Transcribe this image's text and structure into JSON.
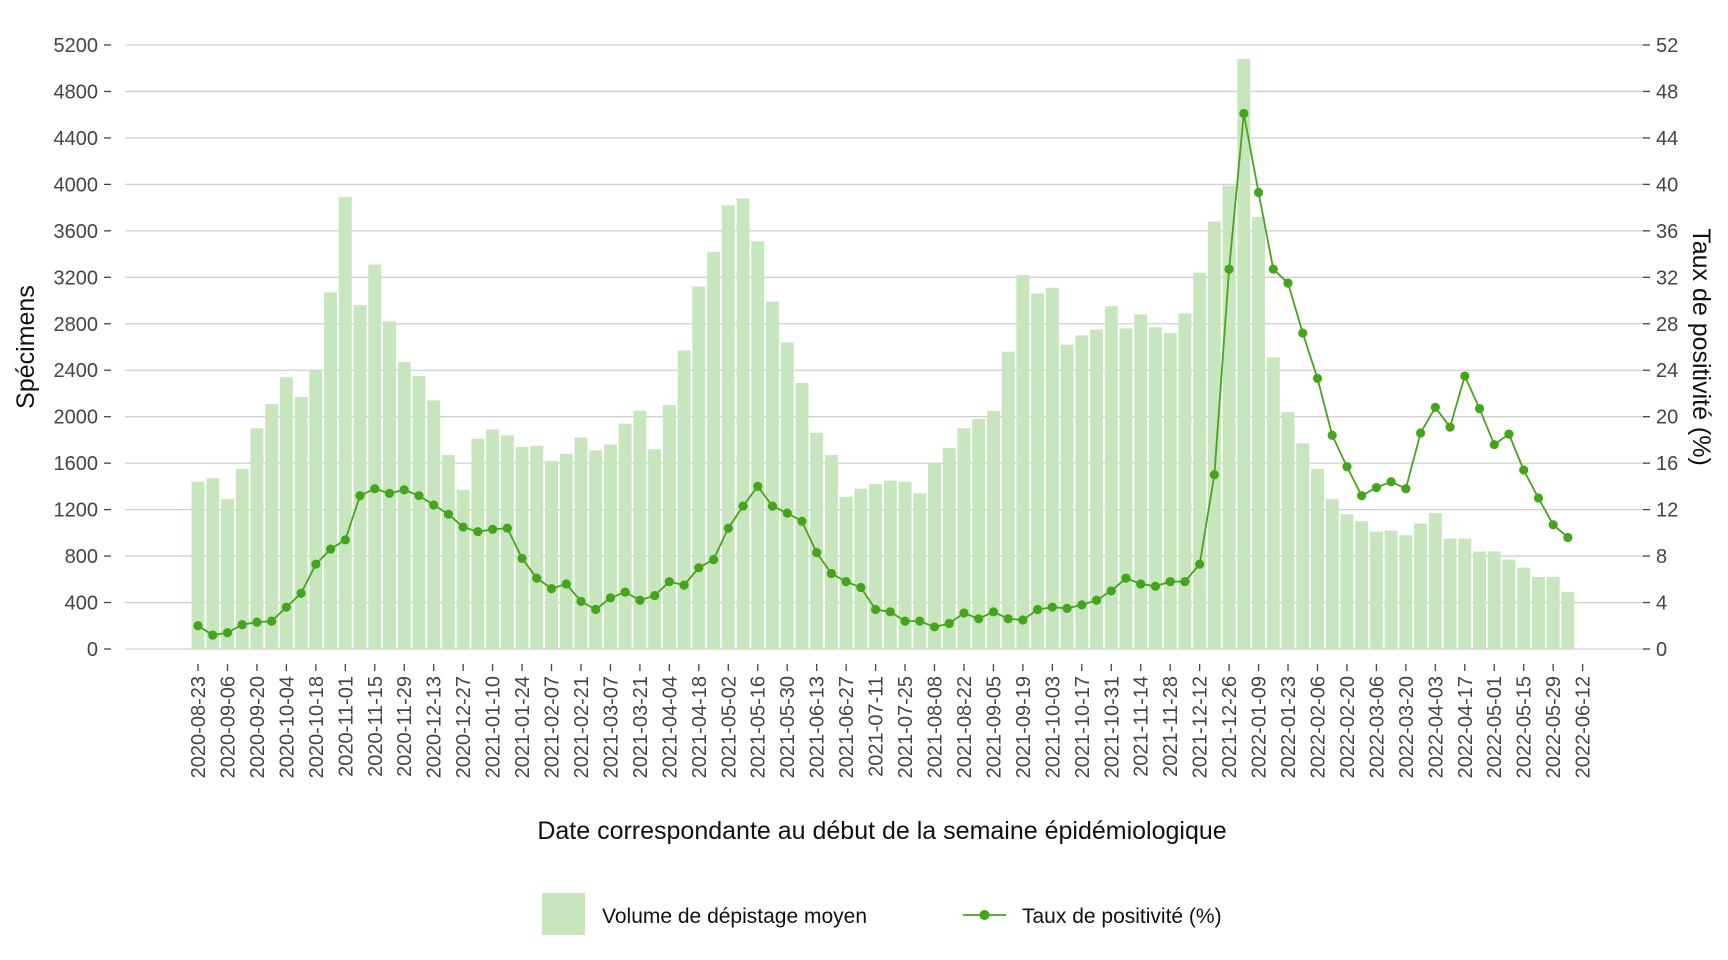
{
  "chart_data": {
    "type": "bar",
    "title": "",
    "xlabel": "Date correspondante au début de la semaine épidémiologique",
    "ylabel": "Spécimens",
    "y2label": "Taux de positivité (%)",
    "ylim": [
      0,
      5200
    ],
    "y2lim": [
      0,
      52
    ],
    "yticks": [
      0,
      400,
      800,
      1200,
      1600,
      2000,
      2400,
      2800,
      3200,
      3600,
      4000,
      4400,
      4800,
      5200
    ],
    "y2ticks": [
      0,
      4,
      8,
      12,
      16,
      20,
      24,
      28,
      32,
      36,
      40,
      44,
      48,
      52
    ],
    "xtick_labels": [
      "2020-08-23",
      "2020-09-06",
      "2020-09-20",
      "2020-10-04",
      "2020-10-18",
      "2020-11-01",
      "2020-11-15",
      "2020-11-29",
      "2020-12-13",
      "2020-12-27",
      "2021-01-10",
      "2021-01-24",
      "2021-02-07",
      "2021-02-21",
      "2021-03-07",
      "2021-03-21",
      "2021-04-04",
      "2021-04-18",
      "2021-05-02",
      "2021-05-16",
      "2021-05-30",
      "2021-06-13",
      "2021-06-27",
      "2021-07-11",
      "2021-07-25",
      "2021-08-08",
      "2021-08-22",
      "2021-09-05",
      "2021-09-19",
      "2021-10-03",
      "2021-10-17",
      "2021-10-31",
      "2021-11-14",
      "2021-11-28",
      "2021-12-12",
      "2021-12-26",
      "2022-01-09",
      "2022-01-23",
      "2022-02-06",
      "2022-02-20",
      "2022-03-06",
      "2022-03-20",
      "2022-04-03",
      "2022-04-17",
      "2022-05-01",
      "2022-05-15",
      "2022-05-29",
      "2022-06-12"
    ],
    "x_start": "2020-08-23",
    "x_step_days": 7,
    "grid": true,
    "legend_position": "bottom",
    "colors": {
      "bars": "#c8e6be",
      "line": "#44a51c",
      "grid": "#cfcfcf"
    },
    "series": [
      {
        "name": "Volume de dépistage moyen",
        "type": "bar",
        "axis": "left",
        "values": [
          1440,
          1470,
          1290,
          1550,
          1900,
          2110,
          2340,
          2170,
          2400,
          3070,
          3890,
          2960,
          3310,
          2820,
          2470,
          2350,
          2140,
          1670,
          1370,
          1810,
          1890,
          1840,
          1740,
          1750,
          1620,
          1680,
          1820,
          1710,
          1760,
          1940,
          2050,
          1720,
          2100,
          2570,
          3120,
          3420,
          3820,
          3880,
          3510,
          2990,
          2640,
          2290,
          1860,
          1670,
          1310,
          1380,
          1420,
          1450,
          1440,
          1340,
          1600,
          1730,
          1900,
          1980,
          2050,
          2560,
          3220,
          3060,
          3110,
          2620,
          2700,
          2750,
          2950,
          2760,
          2880,
          2770,
          2720,
          2890,
          3240,
          3680,
          3990,
          5080,
          3720,
          2510,
          2040,
          1770,
          1550,
          1290,
          1160,
          1100,
          1010,
          1020,
          980,
          1080,
          1170,
          950,
          950,
          840,
          840,
          770,
          700,
          620,
          620,
          490
        ],
        "legend_label": "Volume de dépistage moyen"
      },
      {
        "name": "Taux de positivité (%)",
        "type": "line",
        "axis": "right",
        "values": [
          2.0,
          1.2,
          1.4,
          2.1,
          2.3,
          2.4,
          3.6,
          4.8,
          7.3,
          8.6,
          9.4,
          13.2,
          13.8,
          13.4,
          13.7,
          13.2,
          12.4,
          11.6,
          10.5,
          10.1,
          10.3,
          10.4,
          7.8,
          6.1,
          5.2,
          5.6,
          4.1,
          3.4,
          4.4,
          4.9,
          4.2,
          4.6,
          5.8,
          5.5,
          7.0,
          7.7,
          10.4,
          12.3,
          14.0,
          12.3,
          11.7,
          11.0,
          8.3,
          6.5,
          5.8,
          5.3,
          3.4,
          3.2,
          2.4,
          2.4,
          1.9,
          2.2,
          3.1,
          2.6,
          3.2,
          2.6,
          2.5,
          3.4,
          3.6,
          3.5,
          3.8,
          4.2,
          5.0,
          6.1,
          5.6,
          5.4,
          5.8,
          5.8,
          7.3,
          15.0,
          32.7,
          46.1,
          39.3,
          32.7,
          31.5,
          27.2,
          23.3,
          18.4,
          15.7,
          13.2,
          13.9,
          14.4,
          13.8,
          18.6,
          20.8,
          19.1,
          23.5,
          20.7,
          17.6,
          18.5,
          15.4,
          13.0,
          10.7,
          9.6
        ],
        "legend_label": "Taux de positivité (%)"
      }
    ]
  }
}
